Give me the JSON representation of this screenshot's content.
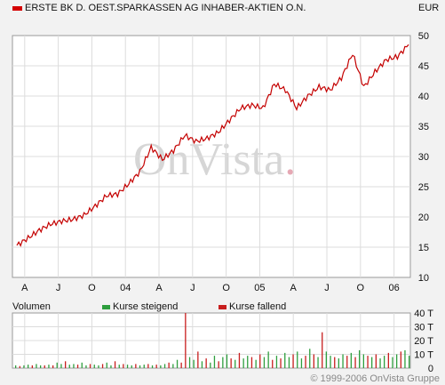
{
  "header": {
    "title": "ERSTE BK D. OEST.SPARKASSEN AG INHABER-AKTIEN O.N.",
    "currency": "EUR",
    "color": "#d40000"
  },
  "watermark": {
    "brand": "OnVista",
    "dot_color": "#e6a8b4"
  },
  "legend": {
    "volume_label": "Volumen",
    "rising_label": "Kurse steigend",
    "falling_label": "Kurse fallend",
    "rising_color": "#2e9e3e",
    "falling_color": "#c81e1e"
  },
  "copyright": "© 1999-2006 OnVista Gruppe",
  "chart_data": [
    {
      "type": "line",
      "series": [
        {
          "color": "#c40000",
          "x": [
            "2003-03",
            "2003-04",
            "2003-05",
            "2003-06",
            "2003-07",
            "2003-08",
            "2003-09",
            "2003-10",
            "2003-11",
            "2003-12",
            "2004-01",
            "2004-02",
            "2004-03",
            "2004-04",
            "2004-05",
            "2004-06",
            "2004-07",
            "2004-08",
            "2004-09",
            "2004-10",
            "2004-11",
            "2004-12",
            "2005-01",
            "2005-02",
            "2005-03",
            "2005-04",
            "2005-05",
            "2005-06",
            "2005-07",
            "2005-08",
            "2005-09",
            "2005-10",
            "2005-11",
            "2005-12",
            "2006-01",
            "2006-02"
          ],
          "values": [
            15.3,
            16.5,
            17.8,
            18.8,
            19.3,
            19.6,
            20.3,
            21.8,
            23.5,
            23.8,
            25.5,
            27.5,
            31.5,
            29.5,
            31.0,
            33.5,
            32.5,
            33.0,
            34.0,
            36.0,
            38.0,
            38.5,
            38.0,
            42.0,
            41.0,
            38.0,
            40.0,
            41.5,
            41.0,
            43.0,
            47.0,
            41.5,
            44.0,
            46.0,
            46.5,
            48.5
          ]
        }
      ],
      "x_ticks": [
        "A",
        "J",
        "O",
        "04",
        "A",
        "J",
        "O",
        "05",
        "A",
        "J",
        "O",
        "06"
      ],
      "y_ticks": [
        10,
        15,
        20,
        25,
        30,
        35,
        40,
        45,
        50
      ],
      "ylim": [
        10,
        50
      ],
      "grid": true
    },
    {
      "type": "bar",
      "y_ticks": [
        "0",
        "10 T",
        "20 T",
        "30 T",
        "40 T"
      ],
      "ylim": [
        0,
        40
      ],
      "values": [
        2,
        1.5,
        2,
        2.5,
        2,
        3,
        2,
        2,
        2.5,
        2,
        4,
        3,
        5,
        2.5,
        3,
        2.5,
        4,
        2,
        3,
        2.5,
        2,
        3,
        4,
        2,
        5,
        2.5,
        3,
        2.5,
        2,
        3,
        2,
        2.5,
        3,
        2,
        2.5,
        2,
        3,
        4,
        3,
        6,
        4,
        40,
        8,
        6,
        12,
        5,
        7,
        4,
        9,
        5,
        8,
        10,
        7,
        6,
        11,
        7,
        9,
        8,
        6,
        10,
        8,
        12,
        6,
        9,
        7,
        11,
        8,
        10,
        12,
        7,
        9,
        14,
        10,
        8,
        26,
        12,
        9,
        8,
        7,
        10,
        9,
        11,
        8,
        13,
        10,
        9,
        8,
        10,
        7,
        9,
        11,
        8,
        10,
        12,
        13,
        9
      ],
      "up": [
        1,
        0,
        1,
        1,
        0,
        1,
        1,
        0,
        1,
        0,
        1,
        1,
        0,
        1,
        1,
        0,
        1,
        1,
        0,
        1,
        1,
        0,
        1,
        1,
        0,
        1,
        0,
        1,
        1,
        0,
        1,
        1,
        0,
        1,
        0,
        1,
        1,
        0,
        1,
        1,
        0,
        0,
        1,
        1,
        0,
        1,
        0,
        1,
        1,
        0,
        1,
        1,
        0,
        1,
        0,
        1,
        1,
        0,
        1,
        0,
        1,
        1,
        0,
        1,
        0,
        1,
        1,
        0,
        1,
        1,
        0,
        1,
        0,
        1,
        0,
        1,
        1,
        0,
        1,
        1,
        0,
        1,
        0,
        1,
        1,
        0,
        1,
        0,
        1,
        1,
        0,
        1,
        1,
        0,
        1,
        1
      ]
    }
  ]
}
